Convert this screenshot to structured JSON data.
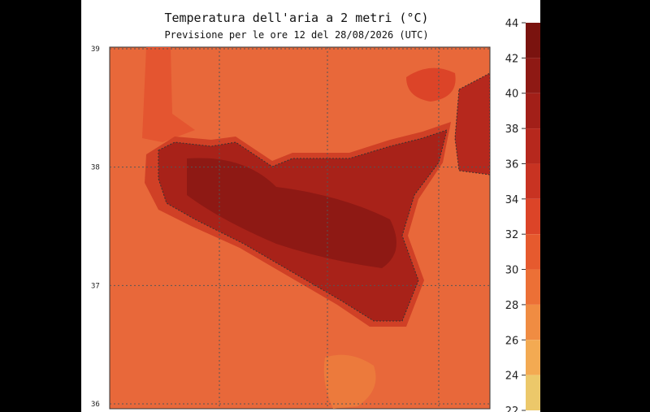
{
  "map": {
    "title": "Temperatura dell'aria a 2 metri (°C)",
    "subtitle": "Previsione per le ore 12 del 28/08/2026 (UTC)",
    "lat_ticks": [
      39,
      38,
      37,
      36
    ],
    "colorbar": {
      "ticks": [
        44,
        42,
        40,
        38,
        36,
        34,
        32,
        30,
        28,
        26,
        24,
        22
      ],
      "colors": [
        "#7a130f",
        "#8e1914",
        "#a21f18",
        "#b6281d",
        "#c83322",
        "#dc4428",
        "#e65a2e",
        "#ec7036",
        "#f08c42",
        "#f3aa52",
        "#ecc86a",
        "#e6e07c"
      ]
    }
  }
}
